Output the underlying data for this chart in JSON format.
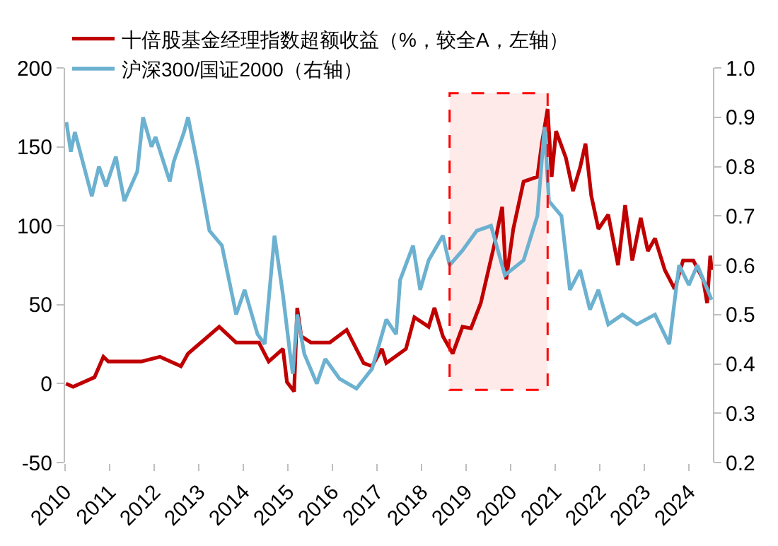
{
  "chart_data": {
    "type": "line",
    "xlim": [
      2010,
      2024.54
    ],
    "xticks": [
      2010,
      2011,
      2012,
      2013,
      2014,
      2015,
      2016,
      2017,
      2018,
      2019,
      2020,
      2021,
      2022,
      2023,
      2024
    ],
    "ylim": [
      -50,
      200
    ],
    "yticks": [
      -50,
      0,
      50,
      100,
      150,
      200
    ],
    "y2lim": [
      0.2,
      1.0
    ],
    "y2ticks": [
      {
        "value": 0.2,
        "label": "0.2"
      },
      {
        "value": 0.3,
        "label": "0.3"
      },
      {
        "value": 0.4,
        "label": "0.4"
      },
      {
        "value": 0.5,
        "label": "0.5"
      },
      {
        "value": 0.6,
        "label": "0.6"
      },
      {
        "value": 0.7,
        "label": "0.7"
      },
      {
        "value": 0.8,
        "label": "0.8"
      },
      {
        "value": 0.9,
        "label": "0.9"
      },
      {
        "value": 1.0,
        "label": "1.0"
      }
    ],
    "grid": false,
    "legend": "top left",
    "marker": "none",
    "line_style": "solid",
    "bands": [
      {
        "axis": "x",
        "from": 2018.63,
        "to": 2020.83,
        "color": "#ff0000"
      }
    ],
    "series": [
      {
        "name": "十倍股基金经理指数超额收益（%，较全A，左轴）",
        "color": "#c00000",
        "x": [
          2010.02,
          2010.18,
          2010.66,
          2010.86,
          2010.97,
          2011.71,
          2012.13,
          2012.6,
          2012.76,
          2013.46,
          2013.84,
          2014.35,
          2014.57,
          2014.89,
          2014.98,
          2015.14,
          2015.21,
          2015.3,
          2015.52,
          2015.94,
          2016.32,
          2016.7,
          2016.89,
          2017.11,
          2017.21,
          2017.65,
          2017.84,
          2018.16,
          2018.29,
          2018.48,
          2018.7,
          2018.92,
          2019.11,
          2019.33,
          2019.65,
          2019.81,
          2019.9,
          2020.06,
          2020.29,
          2020.6,
          2020.7,
          2020.83,
          2020.92,
          2021.02,
          2021.24,
          2021.4,
          2021.56,
          2021.68,
          2021.81,
          2021.97,
          2022.19,
          2022.41,
          2022.57,
          2022.73,
          2022.92,
          2023.08,
          2023.24,
          2023.46,
          2023.68,
          2023.87,
          2024.1,
          2024.32,
          2024.41,
          2024.48,
          2024.51
        ],
        "values": [
          0,
          -2,
          4,
          17,
          14,
          14,
          17,
          11,
          19,
          36,
          26,
          26,
          14,
          22,
          1,
          -5,
          48,
          30,
          26,
          26,
          34,
          13,
          11,
          22,
          13,
          22,
          42,
          36,
          48,
          30,
          19,
          36,
          35,
          51,
          90,
          112,
          66,
          98,
          128,
          131,
          152,
          174,
          131,
          160,
          143,
          122,
          137,
          152,
          119,
          98,
          107,
          75,
          113,
          78,
          105,
          84,
          92,
          72,
          60,
          78,
          78,
          66,
          51,
          81,
          72
        ]
      },
      {
        "name": "沪深300/国证2000（右轴）",
        "color": "#6cb1d0",
        "axis": "y2",
        "x": [
          2010.03,
          2010.13,
          2010.22,
          2010.6,
          2010.76,
          2010.92,
          2011.14,
          2011.33,
          2011.62,
          2011.75,
          2011.94,
          2012.03,
          2012.35,
          2012.44,
          2012.67,
          2012.76,
          2012.98,
          2013.24,
          2013.52,
          2013.84,
          2014.03,
          2014.32,
          2014.48,
          2014.7,
          2014.89,
          2015.05,
          2015.11,
          2015.21,
          2015.37,
          2015.65,
          2015.84,
          2016.16,
          2016.54,
          2016.89,
          2017.21,
          2017.43,
          2017.52,
          2017.81,
          2017.97,
          2018.16,
          2018.48,
          2018.63,
          2018.92,
          2019.24,
          2019.56,
          2019.87,
          2020.29,
          2020.6,
          2020.76,
          2020.86,
          2021.14,
          2021.33,
          2021.56,
          2021.78,
          2021.97,
          2022.19,
          2022.51,
          2022.83,
          2023.24,
          2023.56,
          2023.78,
          2024.0,
          2024.19,
          2024.51
        ],
        "values": [
          0.89,
          0.83,
          0.87,
          0.74,
          0.8,
          0.76,
          0.82,
          0.73,
          0.79,
          0.9,
          0.84,
          0.86,
          0.77,
          0.81,
          0.87,
          0.9,
          0.8,
          0.67,
          0.64,
          0.5,
          0.55,
          0.46,
          0.44,
          0.66,
          0.54,
          0.42,
          0.38,
          0.5,
          0.42,
          0.36,
          0.41,
          0.37,
          0.35,
          0.39,
          0.49,
          0.46,
          0.57,
          0.64,
          0.55,
          0.61,
          0.66,
          0.6,
          0.63,
          0.67,
          0.68,
          0.58,
          0.61,
          0.7,
          0.88,
          0.73,
          0.7,
          0.55,
          0.59,
          0.51,
          0.55,
          0.48,
          0.5,
          0.48,
          0.5,
          0.44,
          0.6,
          0.56,
          0.6,
          0.53
        ]
      }
    ]
  }
}
